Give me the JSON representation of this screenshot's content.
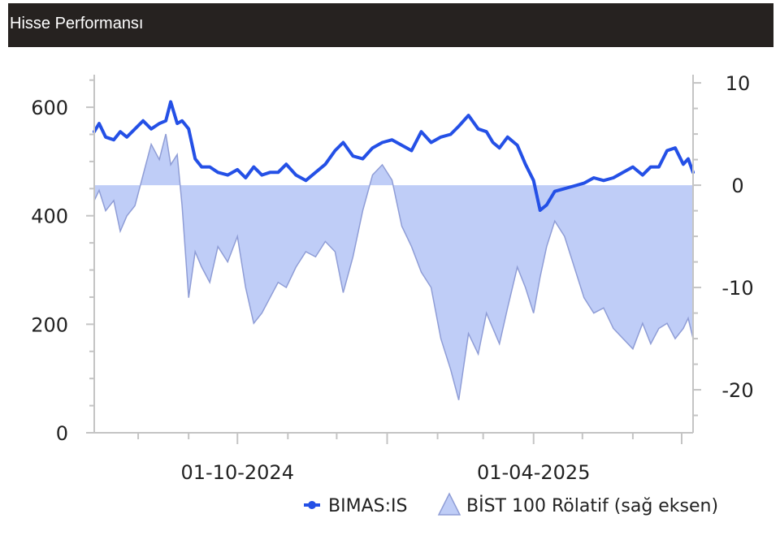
{
  "header": {
    "title": "Hisse Performansı"
  },
  "colors": {
    "line": "#2450e6",
    "area_fill": "#bfcdf7",
    "area_stroke": "#8f9dd6",
    "axis": "#c4c4c4",
    "header_bg": "#262220"
  },
  "chart_data": {
    "type": "line",
    "xlabel": "",
    "ylabel": "",
    "x_tick_labels": [
      "01-10-2024",
      "01-04-2025"
    ],
    "x_range": [
      "2024-07-05",
      "2025-07-08"
    ],
    "ylim_left": [
      0,
      660
    ],
    "yticks_left": [
      0,
      200,
      400,
      600
    ],
    "ylim_right": [
      -24.2,
      10.8
    ],
    "yticks_right": [
      -20,
      -10,
      0,
      10
    ],
    "grid": false,
    "legend_position": "bottom-right",
    "series": [
      {
        "name": "BIMAS:IS",
        "kind": "line",
        "axis": "left",
        "x": [
          "2024-07-05",
          "2024-07-08",
          "2024-07-12",
          "2024-07-17",
          "2024-07-21",
          "2024-07-25",
          "2024-07-30",
          "2024-08-04",
          "2024-08-09",
          "2024-08-14",
          "2024-08-18",
          "2024-08-21",
          "2024-08-25",
          "2024-08-28",
          "2024-09-01",
          "2024-09-05",
          "2024-09-09",
          "2024-09-14",
          "2024-09-19",
          "2024-09-25",
          "2024-10-01",
          "2024-10-06",
          "2024-10-11",
          "2024-10-16",
          "2024-10-21",
          "2024-10-26",
          "2024-10-31",
          "2024-11-06",
          "2024-11-12",
          "2024-11-18",
          "2024-11-24",
          "2024-11-30",
          "2024-12-05",
          "2024-12-11",
          "2024-12-17",
          "2024-12-23",
          "2024-12-29",
          "2025-01-04",
          "2025-01-10",
          "2025-01-16",
          "2025-01-22",
          "2025-01-28",
          "2025-02-03",
          "2025-02-09",
          "2025-02-14",
          "2025-02-20",
          "2025-02-26",
          "2025-03-03",
          "2025-03-07",
          "2025-03-11",
          "2025-03-16",
          "2025-03-22",
          "2025-03-27",
          "2025-04-01",
          "2025-04-05",
          "2025-04-09",
          "2025-04-14",
          "2025-04-20",
          "2025-04-26",
          "2025-05-02",
          "2025-05-08",
          "2025-05-14",
          "2025-05-20",
          "2025-05-26",
          "2025-06-01",
          "2025-06-07",
          "2025-06-12",
          "2025-06-17",
          "2025-06-22",
          "2025-06-27",
          "2025-07-02",
          "2025-07-05",
          "2025-07-08"
        ],
        "values": [
          555,
          570,
          545,
          540,
          555,
          545,
          560,
          575,
          560,
          570,
          575,
          610,
          570,
          575,
          560,
          505,
          490,
          490,
          480,
          475,
          485,
          470,
          490,
          475,
          480,
          480,
          495,
          475,
          465,
          480,
          495,
          520,
          535,
          510,
          505,
          525,
          535,
          540,
          530,
          520,
          555,
          535,
          545,
          550,
          565,
          585,
          560,
          555,
          535,
          525,
          545,
          530,
          495,
          465,
          410,
          420,
          445,
          450,
          455,
          460,
          470,
          465,
          470,
          480,
          490,
          475,
          490,
          490,
          520,
          525,
          495,
          505,
          480
        ]
      },
      {
        "name": "BİST 100 Rölatif (sağ eksen)",
        "kind": "area",
        "axis": "right",
        "x": [
          "2024-07-05",
          "2024-07-08",
          "2024-07-12",
          "2024-07-17",
          "2024-07-21",
          "2024-07-25",
          "2024-07-30",
          "2024-08-04",
          "2024-08-09",
          "2024-08-14",
          "2024-08-18",
          "2024-08-21",
          "2024-08-25",
          "2024-08-28",
          "2024-09-01",
          "2024-09-05",
          "2024-09-09",
          "2024-09-14",
          "2024-09-19",
          "2024-09-25",
          "2024-10-01",
          "2024-10-06",
          "2024-10-11",
          "2024-10-16",
          "2024-10-21",
          "2024-10-26",
          "2024-10-31",
          "2024-11-06",
          "2024-11-12",
          "2024-11-18",
          "2024-11-24",
          "2024-11-30",
          "2024-12-05",
          "2024-12-11",
          "2024-12-17",
          "2024-12-23",
          "2024-12-29",
          "2025-01-04",
          "2025-01-10",
          "2025-01-16",
          "2025-01-22",
          "2025-01-28",
          "2025-02-03",
          "2025-02-09",
          "2025-02-14",
          "2025-02-20",
          "2025-02-26",
          "2025-03-03",
          "2025-03-07",
          "2025-03-11",
          "2025-03-16",
          "2025-03-22",
          "2025-03-27",
          "2025-04-01",
          "2025-04-05",
          "2025-04-09",
          "2025-04-14",
          "2025-04-20",
          "2025-04-26",
          "2025-05-02",
          "2025-05-08",
          "2025-05-14",
          "2025-05-20",
          "2025-05-26",
          "2025-06-01",
          "2025-06-07",
          "2025-06-12",
          "2025-06-17",
          "2025-06-22",
          "2025-06-27",
          "2025-07-02",
          "2025-07-05",
          "2025-07-08"
        ],
        "values": [
          -1.5,
          -0.5,
          -2.5,
          -1.5,
          -4.5,
          -3.0,
          -2.0,
          1.0,
          4.0,
          2.5,
          5.0,
          2.0,
          3.0,
          -2.0,
          -11.0,
          -6.5,
          -8.0,
          -9.5,
          -6.0,
          -7.5,
          -5.0,
          -10.0,
          -13.5,
          -12.5,
          -11.0,
          -9.5,
          -10.0,
          -8.0,
          -6.5,
          -7.0,
          -5.5,
          -6.5,
          -10.5,
          -7.0,
          -2.5,
          1.0,
          2.0,
          0.5,
          -4.0,
          -6.0,
          -8.5,
          -10.0,
          -15.0,
          -18.0,
          -21.0,
          -14.5,
          -16.5,
          -12.5,
          -14.0,
          -15.5,
          -12.0,
          -8.0,
          -10.0,
          -12.5,
          -9.0,
          -6.0,
          -3.5,
          -5.0,
          -8.0,
          -11.0,
          -12.5,
          -12.0,
          -14.0,
          -15.0,
          -16.0,
          -13.5,
          -15.5,
          -14.0,
          -13.5,
          -15.0,
          -14.0,
          -13.0,
          -15.0
        ]
      }
    ]
  }
}
